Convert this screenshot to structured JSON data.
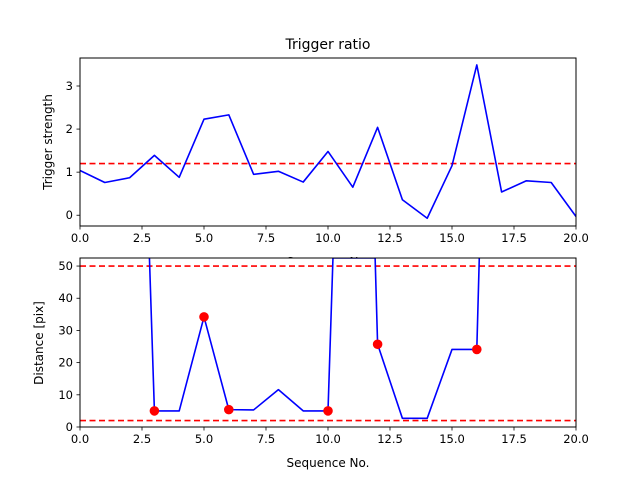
{
  "chart_data": [
    {
      "type": "line",
      "title": "Trigger ratio",
      "xlabel": "Sequence No.",
      "ylabel": "Trigger strength",
      "xlim": [
        0,
        20
      ],
      "ylim": [
        -0.25,
        3.65
      ],
      "xticks": [
        "0.0",
        "2.5",
        "5.0",
        "7.5",
        "10.0",
        "12.5",
        "15.0",
        "17.5",
        "20.0"
      ],
      "yticks": [
        "0",
        "1",
        "2",
        "3"
      ],
      "grid": false,
      "series": [
        {
          "color": "#0000ff",
          "x": [
            0,
            1,
            2,
            3,
            4,
            5,
            6,
            7,
            8,
            9,
            10,
            11,
            12,
            13,
            14,
            15,
            16,
            17,
            18,
            19,
            20
          ],
          "y": [
            1.04,
            0.76,
            0.87,
            1.39,
            0.88,
            2.23,
            2.33,
            0.95,
            1.02,
            0.77,
            1.48,
            0.65,
            2.04,
            0.36,
            -0.07,
            1.15,
            3.49,
            0.54,
            0.8,
            0.76,
            -0.03
          ]
        }
      ],
      "reference_lines": [
        {
          "axis": "y",
          "value": 1.2,
          "style": "dashed",
          "color": "#ff0000"
        }
      ]
    },
    {
      "type": "line",
      "title": "",
      "xlabel": "Sequence No.",
      "ylabel": "Distance [pix]",
      "xlim": [
        0,
        20
      ],
      "ylim": [
        0,
        52.5
      ],
      "xticks": [
        "0.0",
        "2.5",
        "5.0",
        "7.5",
        "10.0",
        "12.5",
        "15.0",
        "17.5",
        "20.0"
      ],
      "yticks": [
        "0",
        "10",
        "20",
        "30",
        "40",
        "50"
      ],
      "grid": false,
      "series": [
        {
          "color": "#0000ff",
          "x": [
            2.8,
            3,
            4,
            5,
            6,
            7,
            8,
            9,
            10,
            10.2,
            11.9,
            12,
            13,
            14,
            15,
            16,
            16.1
          ],
          "y": [
            52.5,
            5,
            5,
            34.2,
            5.4,
            5.3,
            11.6,
            5,
            5,
            52.5,
            52.5,
            25.7,
            2.7,
            2.7,
            24.1,
            24.1,
            52.5
          ]
        }
      ],
      "markers": {
        "color": "#ff0000",
        "x": [
          3,
          5,
          6,
          10,
          12,
          16
        ],
        "y": [
          5,
          34.2,
          5.4,
          5,
          25.7,
          24.1
        ]
      },
      "reference_lines": [
        {
          "axis": "y",
          "value": 50,
          "style": "dashed",
          "color": "#ff0000"
        },
        {
          "axis": "y",
          "value": 2,
          "style": "dashed",
          "color": "#ff0000"
        }
      ]
    }
  ]
}
